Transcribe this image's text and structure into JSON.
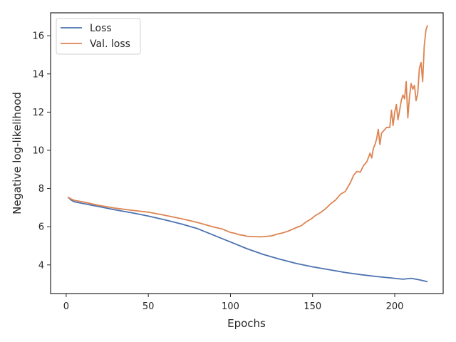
{
  "chart_data": {
    "type": "line",
    "title": "",
    "xlabel": "Epochs",
    "ylabel": "Negative log-likelihood",
    "xlim": [
      -9.5,
      229.5
    ],
    "ylim": [
      2.5,
      17.2
    ],
    "xticks": [
      0,
      50,
      100,
      150,
      200
    ],
    "yticks": [
      4,
      6,
      8,
      10,
      12,
      14,
      16
    ],
    "grid": false,
    "legend_position": "top-left",
    "series": [
      {
        "name": "Loss",
        "color": "#4c72b0",
        "points": [
          [
            1,
            7.55
          ],
          [
            3,
            7.4
          ],
          [
            5,
            7.3
          ],
          [
            10,
            7.22
          ],
          [
            20,
            7.05
          ],
          [
            30,
            6.88
          ],
          [
            40,
            6.73
          ],
          [
            50,
            6.56
          ],
          [
            60,
            6.36
          ],
          [
            70,
            6.15
          ],
          [
            80,
            5.9
          ],
          [
            90,
            5.55
          ],
          [
            100,
            5.2
          ],
          [
            110,
            4.85
          ],
          [
            120,
            4.55
          ],
          [
            130,
            4.3
          ],
          [
            140,
            4.08
          ],
          [
            150,
            3.9
          ],
          [
            160,
            3.75
          ],
          [
            170,
            3.6
          ],
          [
            180,
            3.48
          ],
          [
            190,
            3.38
          ],
          [
            200,
            3.3
          ],
          [
            205,
            3.25
          ],
          [
            210,
            3.3
          ],
          [
            215,
            3.22
          ],
          [
            220,
            3.12
          ]
        ]
      },
      {
        "name": "Val. loss",
        "color": "#dd8452",
        "points": [
          [
            1,
            7.55
          ],
          [
            3,
            7.45
          ],
          [
            5,
            7.38
          ],
          [
            10,
            7.3
          ],
          [
            20,
            7.12
          ],
          [
            30,
            6.97
          ],
          [
            40,
            6.86
          ],
          [
            50,
            6.76
          ],
          [
            60,
            6.6
          ],
          [
            70,
            6.42
          ],
          [
            80,
            6.22
          ],
          [
            90,
            5.98
          ],
          [
            95,
            5.88
          ],
          [
            100,
            5.7
          ],
          [
            103,
            5.65
          ],
          [
            105,
            5.58
          ],
          [
            108,
            5.55
          ],
          [
            110,
            5.5
          ],
          [
            115,
            5.48
          ],
          [
            118,
            5.47
          ],
          [
            120,
            5.48
          ],
          [
            125,
            5.52
          ],
          [
            128,
            5.6
          ],
          [
            132,
            5.68
          ],
          [
            136,
            5.8
          ],
          [
            140,
            5.95
          ],
          [
            143,
            6.05
          ],
          [
            146,
            6.25
          ],
          [
            149,
            6.4
          ],
          [
            152,
            6.6
          ],
          [
            155,
            6.75
          ],
          [
            158,
            6.95
          ],
          [
            161,
            7.2
          ],
          [
            164,
            7.4
          ],
          [
            167,
            7.7
          ],
          [
            170,
            7.85
          ],
          [
            173,
            8.3
          ],
          [
            175,
            8.7
          ],
          [
            177,
            8.9
          ],
          [
            179,
            8.85
          ],
          [
            181,
            9.2
          ],
          [
            183,
            9.4
          ],
          [
            185,
            9.85
          ],
          [
            186,
            9.6
          ],
          [
            187,
            10.1
          ],
          [
            188,
            10.3
          ],
          [
            189,
            10.6
          ],
          [
            190,
            11.1
          ],
          [
            191,
            10.3
          ],
          [
            192,
            10.9
          ],
          [
            193,
            11.0
          ],
          [
            195,
            11.2
          ],
          [
            197,
            11.2
          ],
          [
            198,
            12.1
          ],
          [
            199,
            11.3
          ],
          [
            200,
            12.0
          ],
          [
            201,
            12.4
          ],
          [
            202,
            11.6
          ],
          [
            204,
            12.6
          ],
          [
            205,
            12.9
          ],
          [
            206,
            12.7
          ],
          [
            207,
            13.6
          ],
          [
            208,
            11.7
          ],
          [
            209,
            12.8
          ],
          [
            210,
            13.5
          ],
          [
            211,
            13.2
          ],
          [
            212,
            13.4
          ],
          [
            213,
            12.6
          ],
          [
            214,
            13.0
          ],
          [
            215,
            14.3
          ],
          [
            216,
            14.6
          ],
          [
            217,
            13.6
          ],
          [
            218,
            15.5
          ],
          [
            219,
            16.3
          ],
          [
            220,
            16.55
          ]
        ]
      }
    ]
  }
}
